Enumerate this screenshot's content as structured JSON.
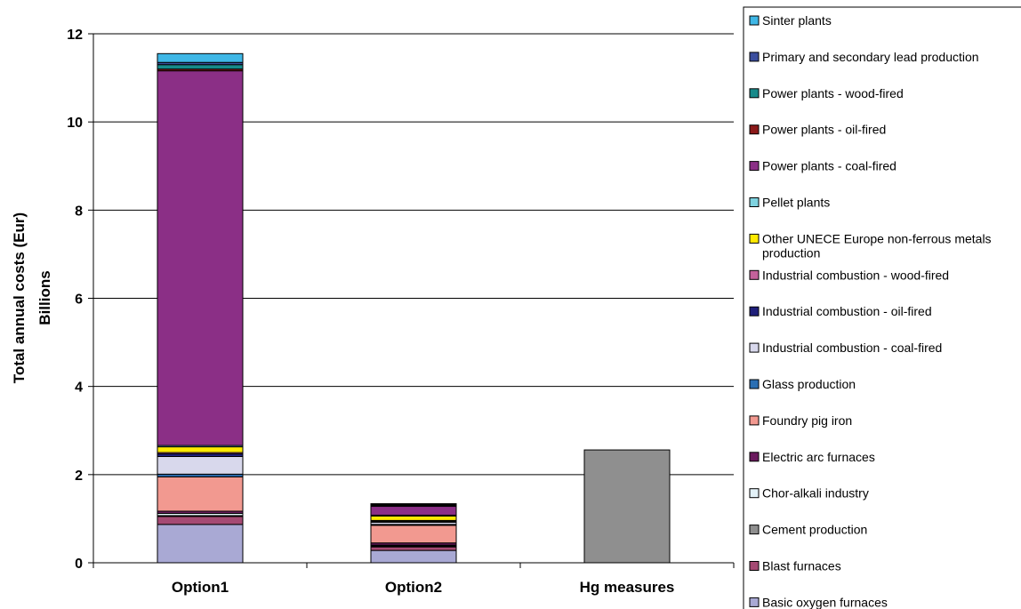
{
  "chart_data": {
    "type": "bar",
    "stacked": true,
    "ylabel": "Total annual costs (Eur)",
    "ylabel_units": "Billions",
    "ylim": [
      0,
      12
    ],
    "yticks": [
      0,
      2,
      4,
      6,
      8,
      10,
      12
    ],
    "grid": true,
    "legend_position": "right",
    "categories": [
      "Option1",
      "Option2",
      "Hg measures"
    ],
    "series": [
      {
        "name": "Basic oxygen furnaces",
        "color": "#a9a9d4",
        "values": [
          0.87,
          0.28,
          0
        ]
      },
      {
        "name": "Blast furnaces",
        "color": "#a54a73",
        "values": [
          0.18,
          0.08,
          0
        ]
      },
      {
        "name": "Cement production",
        "color": "#8f8f8f",
        "values": [
          0.02,
          0.02,
          2.56
        ]
      },
      {
        "name": "Chor-alkali industry",
        "color": "#e3f1f7",
        "values": [
          0.05,
          0.02,
          0
        ]
      },
      {
        "name": "Electric arc furnaces",
        "color": "#6b1a5e",
        "values": [
          0.05,
          0.05,
          0
        ]
      },
      {
        "name": "Foundry pig iron",
        "color": "#f29990",
        "values": [
          0.78,
          0.4,
          0
        ]
      },
      {
        "name": "Glass production",
        "color": "#2b6fb3",
        "values": [
          0.06,
          0.02,
          0
        ]
      },
      {
        "name": "Industrial combustion - coal-fired",
        "color": "#d8d8ec",
        "values": [
          0.4,
          0.05,
          0
        ]
      },
      {
        "name": "Industrial combustion - oil-fired",
        "color": "#1f1f7a",
        "values": [
          0.06,
          0.02,
          0
        ]
      },
      {
        "name": "Industrial combustion - wood-fired",
        "color": "#c4629b",
        "values": [
          0.03,
          0.02,
          0
        ]
      },
      {
        "name": "Other UNECE Europe non-ferrous metals production",
        "color": "#ffea00",
        "values": [
          0.13,
          0.1,
          0
        ]
      },
      {
        "name": "Pellet plants",
        "color": "#7fd3e0",
        "values": [
          0.03,
          0.02,
          0
        ]
      },
      {
        "name": "Power plants - coal-fired",
        "color": "#8b2f86",
        "values": [
          8.5,
          0.2,
          0
        ]
      },
      {
        "name": "Power plants - oil-fired",
        "color": "#8b1a1a",
        "values": [
          0.04,
          0.02,
          0
        ]
      },
      {
        "name": "Power plants - wood-fired",
        "color": "#178a8a",
        "values": [
          0.1,
          0.02,
          0
        ]
      },
      {
        "name": "Primary and secondary lead production",
        "color": "#3b4e9e",
        "values": [
          0.05,
          0.01,
          0
        ]
      },
      {
        "name": "Sinter plants",
        "color": "#3fb7e6",
        "values": [
          0.2,
          0.01,
          0
        ]
      }
    ],
    "legend_order": [
      "Sinter plants",
      "Primary and secondary lead production",
      "Power plants - wood-fired",
      "Power plants - oil-fired",
      "Power plants - coal-fired",
      "Pellet plants",
      "Other UNECE Europe non-ferrous metals production",
      "Industrial combustion - wood-fired",
      "Industrial combustion - oil-fired",
      "Industrial combustion - coal-fired",
      "Glass production",
      "Foundry pig iron",
      "Electric arc furnaces",
      "Chor-alkali industry",
      "Cement production",
      "Blast furnaces",
      "Basic oxygen furnaces"
    ]
  }
}
